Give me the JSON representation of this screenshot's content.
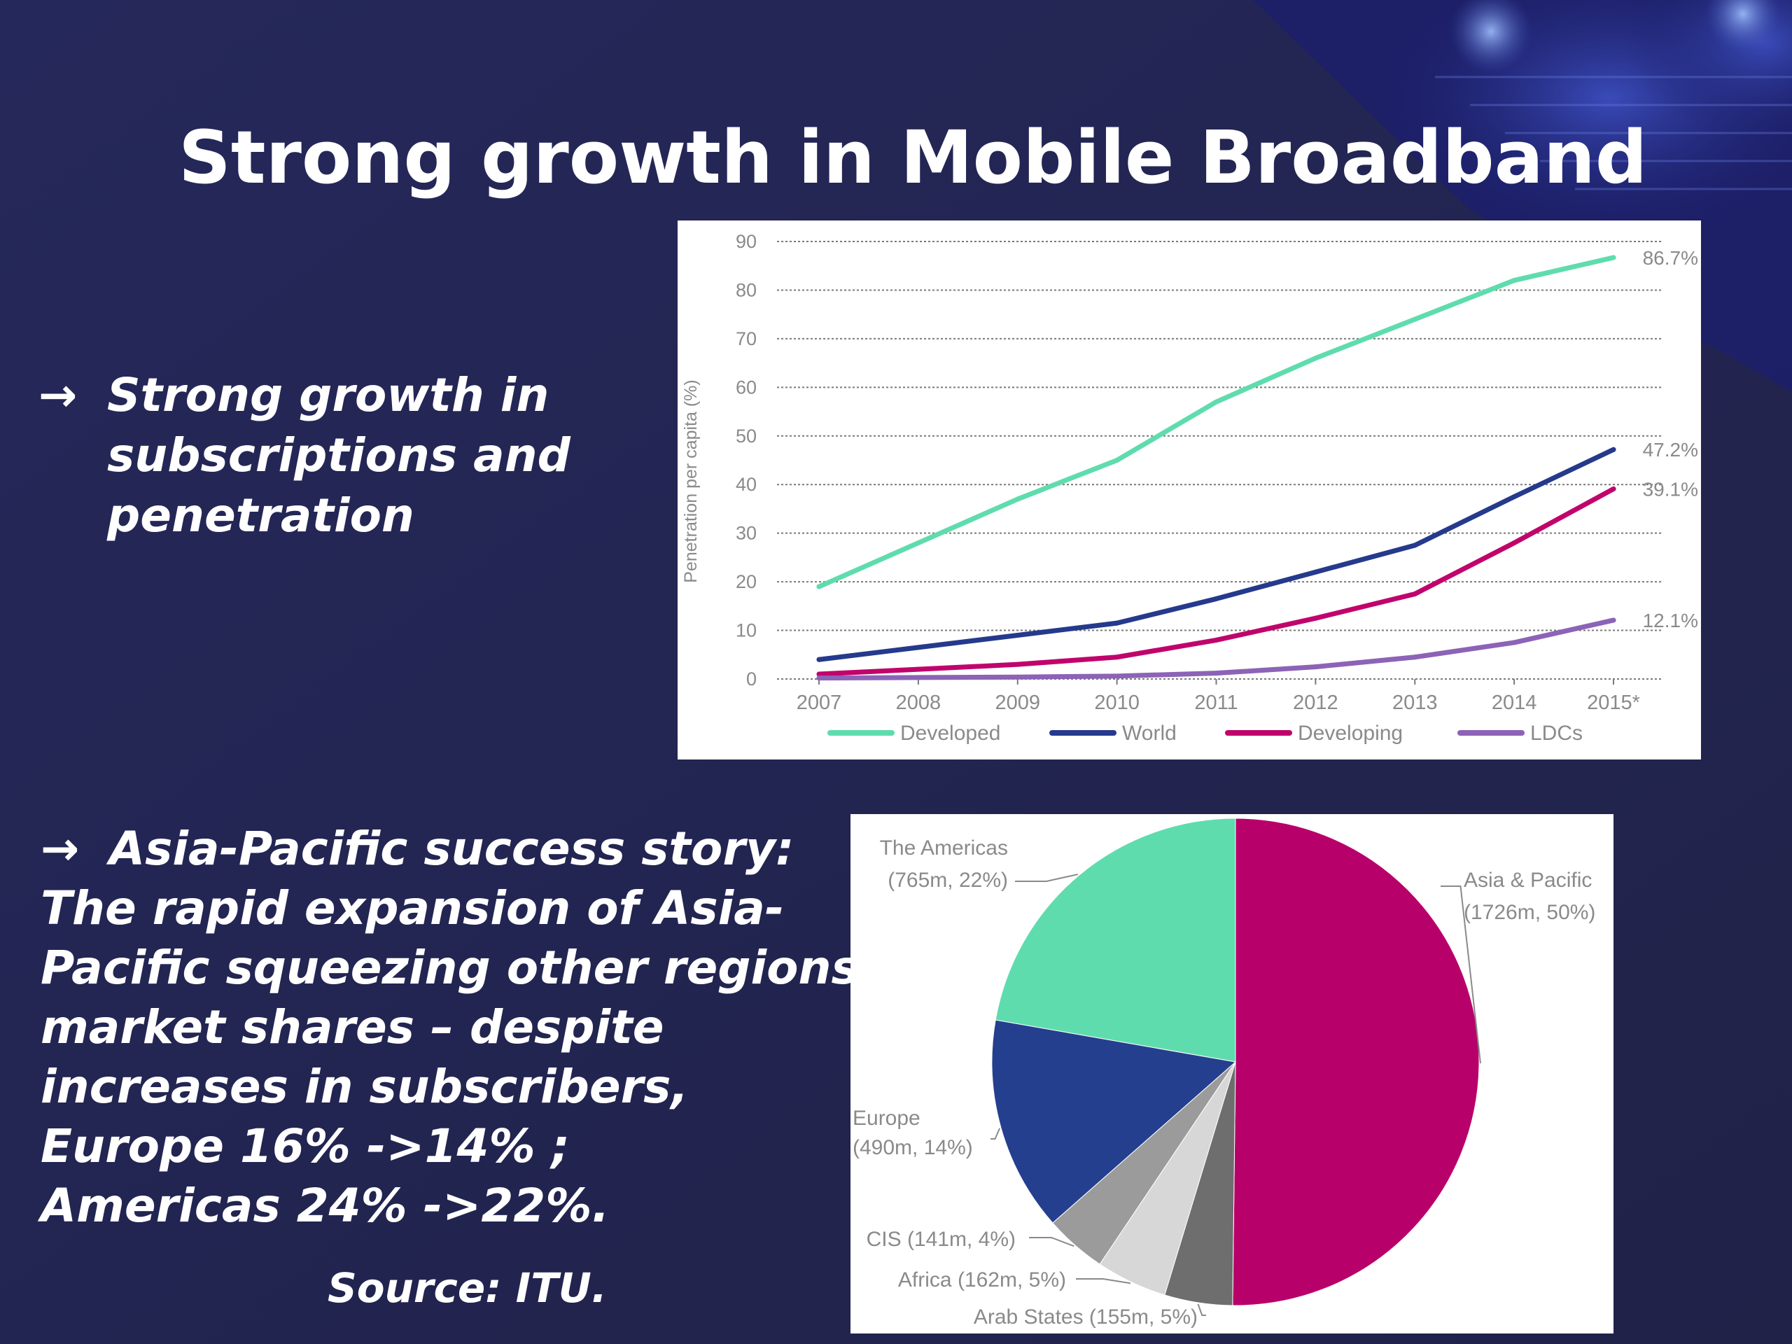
{
  "slide": {
    "title": "Strong growth in Mobile Broadband",
    "bullet1": {
      "arrow": "→",
      "lines": [
        "Strong growth in",
        "subscriptions and",
        "penetration"
      ]
    },
    "bullet2": {
      "arrow": "→",
      "first_line": "Asia-Pacific success story:",
      "lines": [
        "The rapid expansion of Asia-",
        "Pacific squeezing other regions’",
        "market shares – despite",
        "increases in subscribers,",
        "Europe 16% ->14% ;",
        "Americas 24% ->22%."
      ]
    },
    "source": "Source: ITU."
  },
  "colors": {
    "background": "#23264f",
    "developed": "#5fdcad",
    "world": "#253a8c",
    "developing": "#c0046c",
    "ldcs": "#8c63b6",
    "asia_pacific": "#b8006a",
    "americas": "#5fdcad",
    "europe": "#253f8f",
    "cis": "#9b9b9b",
    "africa": "#d7d7d7",
    "arab_states": "#6e6e6e"
  },
  "chart_data": [
    {
      "type": "line",
      "title": "",
      "xlabel": "",
      "ylabel": "Penetration per capita (%)",
      "ylim": [
        0,
        90
      ],
      "yticks": [
        "0",
        "10",
        "20",
        "30",
        "40",
        "50",
        "60",
        "70",
        "80",
        "90"
      ],
      "categories": [
        "2007",
        "2008",
        "2009",
        "2010",
        "2011",
        "2012",
        "2013",
        "2014",
        "2015*"
      ],
      "grid": true,
      "legend_position": "bottom",
      "series": [
        {
          "name": "Developed",
          "values": [
            19,
            28,
            37,
            45,
            57,
            66,
            74,
            82,
            86.7
          ],
          "end_label": "86.7%",
          "color_key": "developed"
        },
        {
          "name": "World",
          "values": [
            4,
            6.5,
            9,
            11.5,
            16.5,
            22,
            27.5,
            37.5,
            47.2
          ],
          "end_label": "47.2%",
          "color_key": "world"
        },
        {
          "name": "Developing",
          "values": [
            1,
            2,
            3,
            4.5,
            8,
            12.5,
            17.5,
            28,
            39.1
          ],
          "end_label": "39.1%",
          "color_key": "developing"
        },
        {
          "name": "LDCs",
          "values": [
            0.2,
            0.3,
            0.4,
            0.6,
            1.2,
            2.5,
            4.5,
            7.5,
            12.1
          ],
          "end_label": "12.1%",
          "color_key": "ldcs"
        }
      ]
    },
    {
      "type": "pie",
      "title": "",
      "slices": [
        {
          "label": "Asia & Pacific",
          "value": 1726,
          "pct": 50,
          "display": [
            "Asia & Pacific",
            "(1726m, 50%)"
          ],
          "color_key": "asia_pacific"
        },
        {
          "label": "Arab States",
          "value": 155,
          "pct": 5,
          "display": [
            "Arab States (155m, 5%)"
          ],
          "color_key": "arab_states"
        },
        {
          "label": "Africa",
          "value": 162,
          "pct": 5,
          "display": [
            "Africa (162m, 5%)"
          ],
          "color_key": "africa"
        },
        {
          "label": "CIS",
          "value": 141,
          "pct": 4,
          "display": [
            "CIS (141m, 4%)"
          ],
          "color_key": "cis"
        },
        {
          "label": "Europe",
          "value": 490,
          "pct": 14,
          "display": [
            "Europe",
            "(490m, 14%)"
          ],
          "color_key": "europe"
        },
        {
          "label": "The Americas",
          "value": 765,
          "pct": 22,
          "display": [
            "The Americas",
            "(765m, 22%)"
          ],
          "color_key": "americas"
        }
      ]
    }
  ]
}
